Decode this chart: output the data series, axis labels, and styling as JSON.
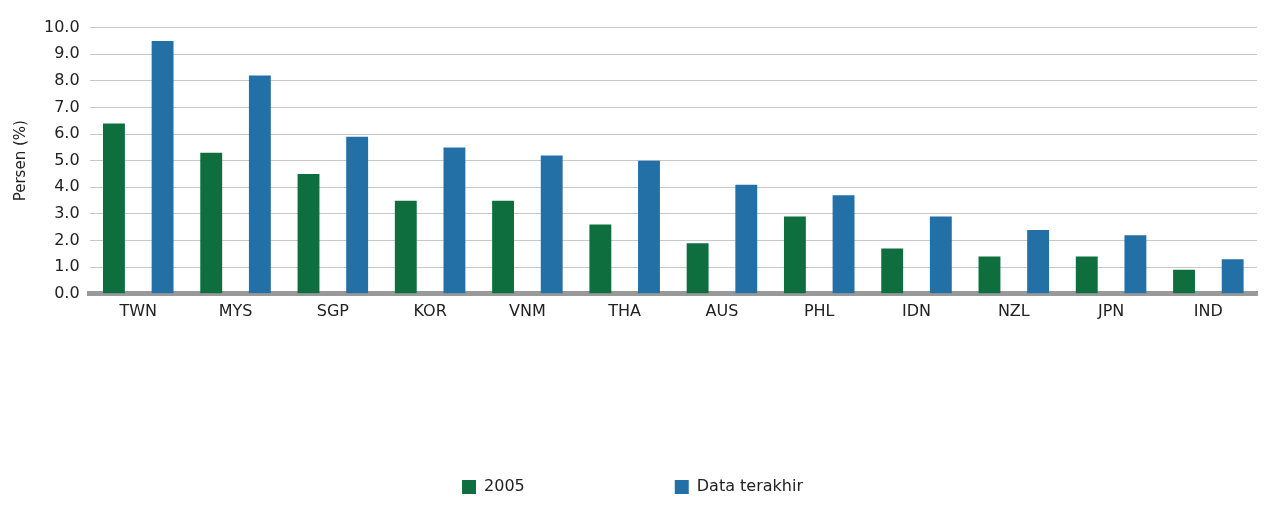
{
  "chart_data": {
    "type": "bar",
    "ylabel": "Persen (%)",
    "categories": [
      "TWN",
      "MYS",
      "SGP",
      "KOR",
      "VNM",
      "THA",
      "AUS",
      "PHL",
      "IDN",
      "NZL",
      "JPN",
      "IND"
    ],
    "series": [
      {
        "name": "2005",
        "color": "#0e6e3e",
        "values": [
          6.4,
          5.3,
          4.5,
          3.5,
          3.5,
          2.6,
          1.9,
          2.9,
          1.7,
          1.4,
          1.4,
          0.9
        ]
      },
      {
        "name": "Data terakhir",
        "color": "#2370a6",
        "values": [
          9.5,
          8.2,
          5.9,
          5.5,
          5.2,
          5.0,
          4.1,
          3.7,
          2.9,
          2.4,
          2.2,
          1.3
        ]
      }
    ],
    "ylim": [
      0,
      10
    ],
    "yticks": [
      {
        "value": 0,
        "label": "0.0"
      },
      {
        "value": 1,
        "label": "1.0"
      },
      {
        "value": 2,
        "label": "2.0"
      },
      {
        "value": 3,
        "label": "3.0"
      },
      {
        "value": 4,
        "label": "4.0"
      },
      {
        "value": 5,
        "label": "5.0"
      },
      {
        "value": 6,
        "label": "6.0"
      },
      {
        "value": 7,
        "label": "7.0"
      },
      {
        "value": 8,
        "label": "8.0"
      },
      {
        "value": 9,
        "label": "9.0"
      },
      {
        "value": 10,
        "label": "10.0"
      }
    ],
    "grid": "y",
    "legend": "bottom"
  }
}
